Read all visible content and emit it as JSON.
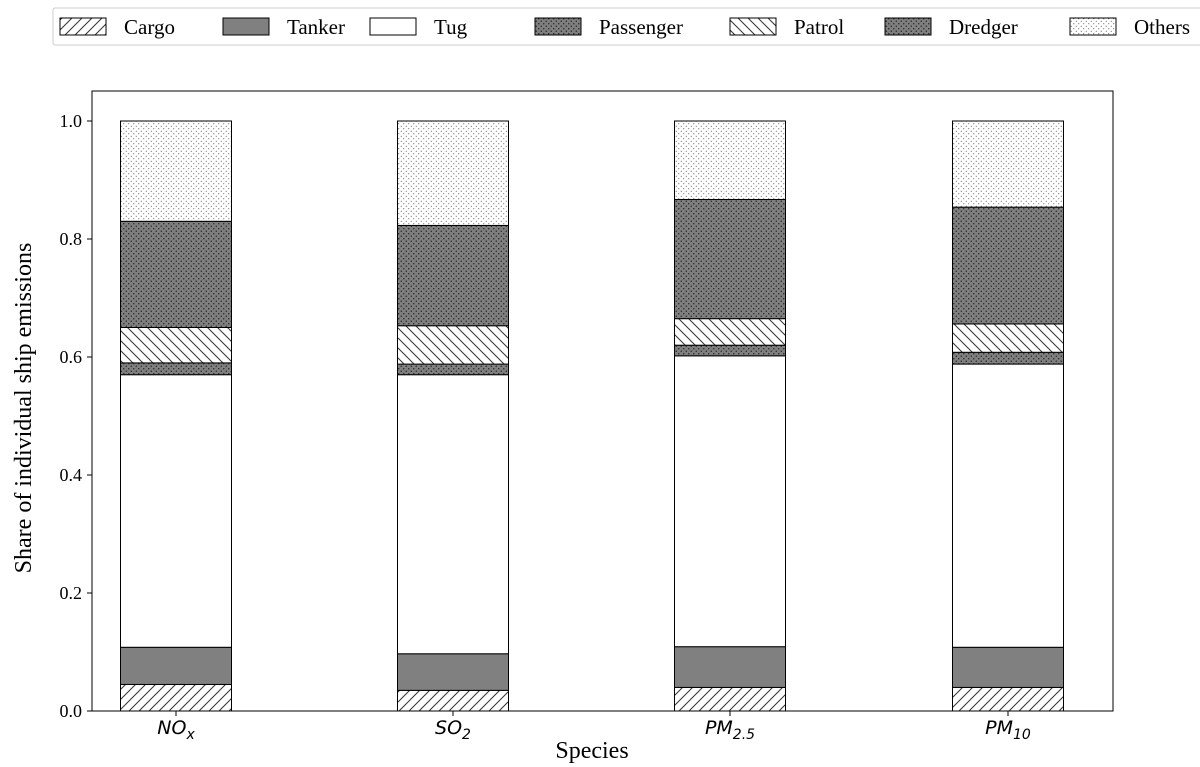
{
  "chart_data": {
    "type": "bar",
    "stacked": true,
    "categories": [
      {
        "base": "NO",
        "sub": "x"
      },
      {
        "base": "SO",
        "sub": "2"
      },
      {
        "base": "PM",
        "sub": "2.5"
      },
      {
        "base": "PM",
        "sub": "10"
      }
    ],
    "series": [
      {
        "name": "Cargo",
        "pattern": "diag-forward",
        "values": [
          0.045,
          0.035,
          0.04,
          0.04
        ]
      },
      {
        "name": "Tanker",
        "pattern": "solid-gray",
        "values": [
          0.063,
          0.062,
          0.069,
          0.068
        ]
      },
      {
        "name": "Tug",
        "pattern": "white",
        "values": [
          0.462,
          0.473,
          0.493,
          0.48
        ]
      },
      {
        "name": "Passenger",
        "pattern": "dense-dots",
        "values": [
          0.02,
          0.018,
          0.018,
          0.02
        ]
      },
      {
        "name": "Patrol",
        "pattern": "diag-back",
        "values": [
          0.06,
          0.065,
          0.045,
          0.048
        ]
      },
      {
        "name": "Dredger",
        "pattern": "dense-dots",
        "values": [
          0.18,
          0.17,
          0.202,
          0.198
        ]
      },
      {
        "name": "Others",
        "pattern": "sparse-dots",
        "values": [
          0.17,
          0.177,
          0.133,
          0.146
        ]
      }
    ],
    "xlabel": "Species",
    "ylabel": "Share of individual ship emissions",
    "ylim": [
      0,
      1.05
    ],
    "yticks": [
      "0.0",
      "0.2",
      "0.4",
      "0.6",
      "0.8",
      "1.0"
    ],
    "grid": false,
    "legend": "top, horizontal, outside plot"
  }
}
